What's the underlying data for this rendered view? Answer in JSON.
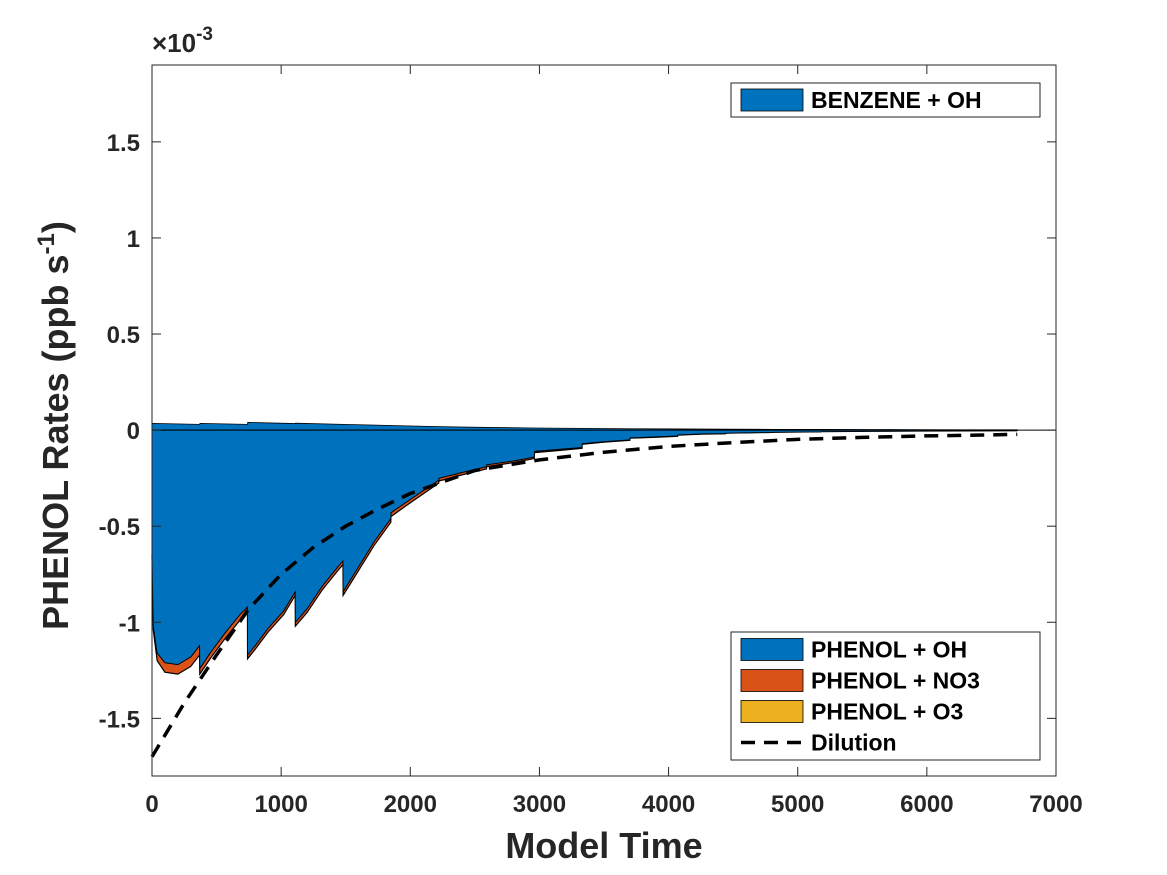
{
  "chart_data": {
    "type": "area",
    "xlabel": "Model Time",
    "ylabel": "PHENOL Rates (ppb s",
    "ylabel_sup": "-1",
    "ylabel_close": ")",
    "y_multiplier": "×10",
    "y_multiplier_exp": "-3",
    "xlim": [
      0,
      7000
    ],
    "ylim": [
      -0.0018,
      0.0019
    ],
    "x_ticks": [
      0,
      1000,
      2000,
      3000,
      4000,
      5000,
      6000,
      7000
    ],
    "x_tick_labels": [
      "0",
      "1000",
      "2000",
      "3000",
      "4000",
      "5000",
      "6000",
      "7000"
    ],
    "y_ticks": [
      -0.0015,
      -0.001,
      -0.0005,
      0,
      0.0005,
      0.001,
      0.0015
    ],
    "y_tick_labels": [
      "-1.5",
      "-1",
      "-0.5",
      "0",
      "0.5",
      "1",
      "1.5"
    ],
    "grid": false,
    "legend_top": {
      "placement": "top-right",
      "entries": [
        "BENZENE + OH"
      ]
    },
    "legend_bottom": {
      "placement": "bottom-right",
      "entries": [
        "PHENOL + OH",
        "PHENOL + NO3",
        "PHENOL + O3",
        "Dilution"
      ]
    },
    "series": [
      {
        "name": "BENZENE + OH",
        "kind": "area",
        "color": "#0072BD",
        "x": [
          0,
          370,
          371,
          740,
          741,
          1110,
          1111,
          1480,
          1481,
          1850,
          1851,
          2220,
          2221,
          2590,
          2591,
          2960,
          2961,
          3330,
          3331,
          3700,
          3701,
          4070,
          4071,
          4440,
          4441,
          4810,
          4811,
          5180,
          5181,
          5550,
          5551,
          5920,
          5921,
          6290,
          6291,
          6700
        ],
        "values": [
          3.5e-05,
          3e-05,
          3.5e-05,
          3e-05,
          4e-05,
          3.4e-05,
          3.6e-05,
          3e-05,
          3e-05,
          2.4e-05,
          2.4e-05,
          1.8e-05,
          1.8e-05,
          1.4e-05,
          1.4e-05,
          1.1e-05,
          1.1e-05,
          9e-06,
          9e-06,
          7e-06,
          7e-06,
          6e-06,
          6e-06,
          5e-06,
          5e-06,
          4e-06,
          4e-06,
          3.5e-06,
          3.5e-06,
          3e-06,
          3e-06,
          2.5e-06,
          2.5e-06,
          2e-06,
          2e-06,
          1.5e-06
        ]
      },
      {
        "name": "PHENOL + OH",
        "kind": "area",
        "color": "#0072BD",
        "x": [
          0,
          10,
          40,
          100,
          200,
          300,
          369,
          370,
          450,
          560,
          680,
          739,
          740,
          800,
          900,
          1020,
          1109,
          1110,
          1200,
          1320,
          1440,
          1479,
          1480,
          1600,
          1720,
          1849,
          1850,
          2000,
          2220,
          2221,
          2400,
          2590,
          2591,
          2800,
          2960,
          2961,
          3150,
          3330,
          3331,
          3500,
          3700,
          3701,
          3900,
          4070,
          4071,
          4250,
          4440,
          4441,
          4810,
          4811,
          5180,
          5181,
          5550,
          5551,
          5920,
          5921,
          6290,
          6291,
          6700
        ],
        "values": [
          -0.00065,
          -0.00102,
          -0.00116,
          -0.00121,
          -0.00122,
          -0.00118,
          -0.00112,
          -0.00124,
          -0.00116,
          -0.00106,
          -0.00096,
          -0.00092,
          -0.00117,
          -0.00112,
          -0.00103,
          -0.00094,
          -0.00084,
          -0.001,
          -0.00093,
          -0.00081,
          -0.00071,
          -0.00068,
          -0.00084,
          -0.00071,
          -0.00058,
          -0.00046,
          -0.00043,
          -0.00036,
          -0.00026,
          -0.00025,
          -0.00022,
          -0.00019,
          -0.00018,
          -0.00016,
          -0.00014,
          -0.00011,
          -0.0001,
          -9e-05,
          -7e-05,
          -6e-05,
          -5e-05,
          -4e-05,
          -3.5e-05,
          -3e-05,
          -2.5e-05,
          -2e-05,
          -1.8e-05,
          -1.6e-05,
          -1.2e-05,
          -1.1e-05,
          -9e-06,
          -8e-06,
          -6e-06,
          -6e-06,
          -5e-06,
          -5e-06,
          -4e-06,
          -4e-06,
          -3e-06
        ]
      },
      {
        "name": "PHENOL + NO3",
        "kind": "area",
        "color": "#D95319",
        "x": [
          0,
          10,
          40,
          100,
          200,
          300,
          369,
          370,
          450,
          560,
          680,
          739,
          740,
          800,
          900,
          1020,
          1109,
          1110,
          1200,
          1320,
          1440,
          1479,
          1480,
          1600,
          1720,
          1849,
          1850,
          2000,
          2220,
          2221,
          2400,
          2590,
          2591,
          2800,
          2960,
          2961,
          3150,
          3330,
          3331,
          3500,
          3700,
          3701,
          3900,
          4070,
          4071,
          4250,
          4440,
          4441,
          4810,
          4811,
          5180,
          5181,
          5550,
          5551,
          5920,
          5921,
          6290,
          6291,
          6700
        ],
        "values": [
          -1e-05,
          -2e-05,
          -4e-05,
          -5e-05,
          -5e-05,
          -5e-05,
          -5e-05,
          -3e-05,
          -3e-05,
          -3e-05,
          -3e-05,
          -3e-05,
          -2e-05,
          -2e-05,
          -2e-05,
          -2e-05,
          -2e-05,
          -2e-05,
          -2e-05,
          -2e-05,
          -2e-05,
          -2e-05,
          -2e-05,
          -2e-05,
          -2e-05,
          -2e-05,
          -2e-05,
          -1.8e-05,
          -1.6e-05,
          -1.5e-05,
          -1.3e-05,
          -1.2e-05,
          -1e-05,
          -9e-06,
          -8e-06,
          -7e-06,
          -6e-06,
          -5e-06,
          -4e-06,
          -3e-06,
          -3e-06,
          -2e-06,
          -2e-06,
          -2e-06,
          -1e-06,
          -1e-06,
          -1e-06,
          0,
          0,
          0,
          0,
          0,
          0,
          0,
          0,
          0,
          0,
          0,
          0
        ]
      },
      {
        "name": "PHENOL + O3",
        "kind": "area",
        "color": "#EDB120",
        "x": [
          0,
          6700
        ],
        "values": [
          0,
          0
        ]
      },
      {
        "name": "Dilution",
        "kind": "line",
        "style": "dashed",
        "color": "#000000",
        "x": [
          0,
          250,
          500,
          750,
          1000,
          1250,
          1500,
          1750,
          2000,
          2500,
          3000,
          3500,
          4000,
          4500,
          5000,
          5500,
          6000,
          6500,
          6700
        ],
        "values": [
          -0.0017,
          -0.00142,
          -0.00117,
          -0.00093,
          -0.00075,
          -0.00061,
          -0.0005,
          -0.00041,
          -0.00033,
          -0.00021,
          -0.000155,
          -0.000115,
          -8.5e-05,
          -6.5e-05,
          -4.8e-05,
          -3.8e-05,
          -3e-05,
          -2.5e-05,
          -2.2e-05
        ]
      }
    ]
  }
}
